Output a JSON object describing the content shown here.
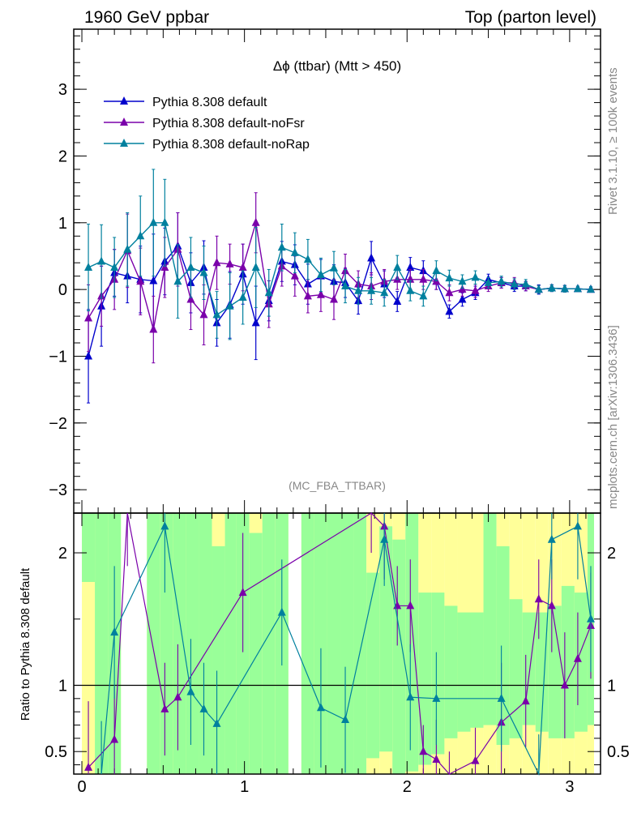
{
  "header": {
    "left": "1960 GeV ppbar",
    "right": "Top (parton level)"
  },
  "side_text": {
    "right_top": "Rivet 3.1.10, ≥ 100k events",
    "right_bottom": "mcplots.cern.ch [arXiv:1306.3436]"
  },
  "chart_data": [
    {
      "type": "line",
      "title": "Δϕ (ttbar) (Mtt > 450)",
      "watermark": "(MC_FBA_TTBAR)",
      "xlabel": "",
      "ylabel": "",
      "xlim": [
        -0.05,
        3.19
      ],
      "ylim": [
        -3.35,
        3.9
      ],
      "x_ticks": [
        0,
        1,
        2,
        3
      ],
      "x_tick_labels": [
        "0",
        "1",
        "2",
        "3"
      ],
      "y_ticks": [
        -3,
        -2,
        -1,
        0,
        1,
        2,
        3
      ],
      "y_tick_labels": [
        "−3",
        "−2",
        "−1",
        "0",
        "1",
        "2",
        "3"
      ],
      "legend_position": "top-left",
      "colors": {
        "default": "#0000cc",
        "noFsr": "#7a00aa",
        "noRap": "#00809e",
        "band_inner": "#99ff99",
        "band_outer": "#ffff99"
      },
      "series": [
        {
          "name": "Pythia 8.308 default",
          "color": "#0000cc",
          "x": [
            0.04,
            0.12,
            0.2,
            0.28,
            0.36,
            0.44,
            0.51,
            0.59,
            0.67,
            0.75,
            0.83,
            0.91,
            0.99,
            1.07,
            1.15,
            1.23,
            1.31,
            1.39,
            1.47,
            1.55,
            1.62,
            1.7,
            1.78,
            1.86,
            1.94,
            2.02,
            2.1,
            2.18,
            2.26,
            2.34,
            2.42,
            2.5,
            2.58,
            2.66,
            2.73,
            2.81,
            2.89,
            2.97,
            3.05,
            3.13
          ],
          "y": [
            -1.0,
            -0.25,
            0.25,
            0.2,
            0.15,
            0.13,
            0.42,
            0.65,
            0.1,
            0.33,
            -0.5,
            -0.23,
            0.23,
            -0.5,
            -0.17,
            0.42,
            0.37,
            0.08,
            0.2,
            0.12,
            0.1,
            -0.17,
            0.47,
            0.08,
            -0.18,
            0.33,
            0.28,
            0.12,
            -0.33,
            -0.15,
            -0.05,
            0.15,
            0.1,
            0.05,
            0.05,
            0.0,
            0.02,
            0.01,
            0.01,
            0.0
          ],
          "err": [
            0.7,
            0.6,
            0.35,
            0.4,
            0.5,
            0.7,
            0.5,
            0.5,
            0.45,
            0.4,
            0.35,
            0.5,
            0.45,
            0.55,
            0.3,
            0.3,
            0.3,
            0.3,
            0.25,
            0.25,
            0.22,
            0.2,
            0.25,
            0.2,
            0.15,
            0.15,
            0.15,
            0.12,
            0.1,
            0.1,
            0.1,
            0.08,
            0.08,
            0.08,
            0.07,
            0.07,
            0.05,
            0.05,
            0.04,
            0.04
          ]
        },
        {
          "name": "Pythia 8.308 default-noFsr",
          "color": "#7a00aa",
          "x": [
            0.04,
            0.12,
            0.2,
            0.28,
            0.36,
            0.44,
            0.51,
            0.59,
            0.67,
            0.75,
            0.83,
            0.91,
            0.99,
            1.07,
            1.15,
            1.23,
            1.31,
            1.39,
            1.47,
            1.55,
            1.62,
            1.7,
            1.78,
            1.86,
            1.94,
            2.02,
            2.1,
            2.18,
            2.26,
            2.34,
            2.42,
            2.5,
            2.58,
            2.66,
            2.73,
            2.81,
            2.89,
            2.97,
            3.05,
            3.13
          ],
          "y": [
            -0.43,
            -0.1,
            0.15,
            0.58,
            0.12,
            -0.6,
            0.33,
            0.6,
            -0.15,
            -0.38,
            0.4,
            0.38,
            0.33,
            1.0,
            -0.22,
            0.35,
            0.2,
            -0.1,
            -0.08,
            -0.15,
            0.28,
            0.08,
            0.05,
            0.12,
            0.15,
            0.15,
            0.15,
            0.12,
            -0.05,
            0.0,
            -0.02,
            0.05,
            0.1,
            0.1,
            0.05,
            0.0,
            0.02,
            0.01,
            0.01,
            0.0
          ],
          "err": [
            0.5,
            0.45,
            0.45,
            0.55,
            0.5,
            0.5,
            0.45,
            0.55,
            0.45,
            0.45,
            0.4,
            0.3,
            0.35,
            0.45,
            0.35,
            0.3,
            0.3,
            0.25,
            0.25,
            0.3,
            0.25,
            0.2,
            0.2,
            0.18,
            0.15,
            0.15,
            0.15,
            0.12,
            0.12,
            0.1,
            0.1,
            0.08,
            0.08,
            0.08,
            0.07,
            0.06,
            0.05,
            0.05,
            0.04,
            0.04
          ]
        },
        {
          "name": "Pythia 8.308 default-noRap",
          "color": "#00809e",
          "x": [
            0.04,
            0.12,
            0.2,
            0.28,
            0.36,
            0.44,
            0.51,
            0.59,
            0.67,
            0.75,
            0.83,
            0.91,
            0.99,
            1.07,
            1.15,
            1.23,
            1.31,
            1.39,
            1.47,
            1.55,
            1.62,
            1.7,
            1.78,
            1.86,
            1.94,
            2.02,
            2.1,
            2.18,
            2.26,
            2.34,
            2.42,
            2.5,
            2.58,
            2.66,
            2.73,
            2.81,
            2.89,
            2.97,
            3.05,
            3.13
          ],
          "y": [
            0.33,
            0.42,
            0.33,
            0.6,
            0.8,
            1.0,
            1.0,
            0.12,
            0.33,
            0.25,
            -0.38,
            -0.25,
            -0.12,
            0.33,
            -0.05,
            0.63,
            0.55,
            0.45,
            0.22,
            0.32,
            0.05,
            -0.02,
            -0.02,
            -0.05,
            0.33,
            -0.02,
            -0.1,
            0.28,
            0.17,
            0.12,
            0.18,
            0.1,
            0.12,
            0.08,
            0.08,
            0.0,
            0.02,
            0.01,
            0.01,
            0.0
          ],
          "err": [
            0.65,
            0.55,
            0.45,
            0.55,
            0.6,
            0.8,
            0.65,
            0.55,
            0.45,
            0.4,
            0.35,
            0.5,
            0.4,
            0.6,
            0.35,
            0.35,
            0.3,
            0.3,
            0.25,
            0.25,
            0.25,
            0.2,
            0.2,
            0.2,
            0.18,
            0.15,
            0.15,
            0.15,
            0.12,
            0.1,
            0.1,
            0.08,
            0.08,
            0.08,
            0.07,
            0.06,
            0.05,
            0.05,
            0.04,
            0.04
          ]
        }
      ]
    },
    {
      "type": "line",
      "ylabel": "Ratio to Pythia 8.308 default",
      "xlim": [
        -0.05,
        3.19
      ],
      "ylim": [
        0.33,
        2.3
      ],
      "x_ticks": [
        0,
        1,
        2,
        3
      ],
      "x_tick_labels": [
        "0",
        "1",
        "2",
        "3"
      ],
      "y_ticks": [
        0.5,
        1,
        2
      ],
      "y_tick_labels": [
        "0.5",
        "1",
        "2"
      ],
      "reference_line": 1,
      "band_bins": [
        [
          0.0,
          0.08,
          1.78,
          2.3
        ],
        [
          0.08,
          0.16,
          0.33,
          2.3
        ],
        [
          0.16,
          0.24,
          0.33,
          2.3
        ],
        [
          0.24,
          0.32,
          null,
          null
        ],
        [
          0.32,
          0.4,
          null,
          null
        ],
        [
          0.4,
          0.48,
          0.33,
          2.3
        ],
        [
          0.48,
          0.56,
          0.33,
          2.3
        ],
        [
          0.56,
          0.64,
          0.33,
          2.3
        ],
        [
          0.64,
          0.72,
          0.33,
          2.3
        ],
        [
          0.72,
          0.8,
          0.33,
          2.3
        ],
        [
          0.8,
          0.88,
          0.33,
          2.05
        ],
        [
          0.88,
          0.95,
          0.33,
          2.3
        ],
        [
          0.95,
          1.03,
          0.33,
          2.3
        ],
        [
          1.03,
          1.11,
          0.33,
          2.15
        ],
        [
          1.11,
          1.19,
          0.33,
          2.3
        ],
        [
          1.19,
          1.27,
          0.33,
          2.3
        ],
        [
          1.27,
          1.35,
          null,
          null
        ],
        [
          1.35,
          1.43,
          0.33,
          2.3
        ],
        [
          1.43,
          1.51,
          0.33,
          2.3
        ],
        [
          1.51,
          1.59,
          0.33,
          2.3
        ],
        [
          1.59,
          1.67,
          0.33,
          2.3
        ],
        [
          1.67,
          1.75,
          0.33,
          2.3
        ],
        [
          1.75,
          1.83,
          0.45,
          1.85
        ],
        [
          1.83,
          1.91,
          0.5,
          2.2
        ],
        [
          1.91,
          1.99,
          0.33,
          2.1
        ],
        [
          1.99,
          2.07,
          0.35,
          2.3
        ],
        [
          2.07,
          2.15,
          0.4,
          1.7
        ],
        [
          2.15,
          2.23,
          0.48,
          1.7
        ],
        [
          2.23,
          2.31,
          0.6,
          1.6
        ],
        [
          2.31,
          2.39,
          0.65,
          1.55
        ],
        [
          2.39,
          2.47,
          0.68,
          1.55
        ],
        [
          2.47,
          2.55,
          0.7,
          2.3
        ],
        [
          2.55,
          2.63,
          0.55,
          2.05
        ],
        [
          2.63,
          2.71,
          0.6,
          1.65
        ],
        [
          2.71,
          2.79,
          0.7,
          1.55
        ],
        [
          2.79,
          2.87,
          0.65,
          1.55
        ],
        [
          2.87,
          2.95,
          0.6,
          1.6
        ],
        [
          2.95,
          3.03,
          0.6,
          1.75
        ],
        [
          3.03,
          3.11,
          0.65,
          1.7
        ],
        [
          3.11,
          3.15,
          0.7,
          2.3
        ]
      ],
      "series": [
        {
          "name": "Pythia 8.308 default-noFsr",
          "color": "#7a00aa",
          "x": [
            0.04,
            0.2,
            0.28,
            0.51,
            0.59,
            0.99,
            1.78,
            1.86,
            1.94,
            2.02,
            2.1,
            2.18,
            2.26,
            2.42,
            2.58,
            2.73,
            2.81,
            2.89,
            2.97,
            3.05,
            3.13
          ],
          "y": [
            0.38,
            0.59,
            2.3,
            0.82,
            0.91,
            1.7,
            2.3,
            2.2,
            1.6,
            1.6,
            0.5,
            0.44,
            0.2,
            0.43,
            0.72,
            0.88,
            1.65,
            1.6,
            1.0,
            1.2,
            1.45
          ],
          "err": [
            0.5,
            0.4,
            0.4,
            0.35,
            0.4,
            0.45,
            0.3,
            0.4,
            0.3,
            0.35,
            0.2,
            0.3,
            0.3,
            0.25,
            0.45,
            0.35,
            0.3,
            0.35,
            0.4,
            0.35,
            0.4
          ]
        },
        {
          "name": "Pythia 8.308 default-noRap",
          "color": "#00809e",
          "x": [
            0.12,
            0.2,
            0.51,
            0.67,
            0.75,
            0.83,
            1.23,
            1.47,
            1.62,
            1.86,
            2.02,
            2.18,
            2.58,
            2.81,
            2.89,
            3.05,
            3.13
          ],
          "y": [
            0.33,
            1.4,
            2.2,
            0.95,
            0.82,
            0.71,
            1.55,
            0.83,
            0.74,
            2.1,
            0.91,
            0.9,
            0.9,
            0.33,
            2.1,
            2.2,
            1.5
          ],
          "err": [
            0.4,
            0.5,
            0.5,
            0.4,
            0.35,
            0.4,
            0.4,
            0.45,
            0.4,
            0.35,
            0.4,
            0.35,
            0.4,
            0.3,
            0.3,
            0.4,
            0.4
          ]
        }
      ]
    }
  ]
}
